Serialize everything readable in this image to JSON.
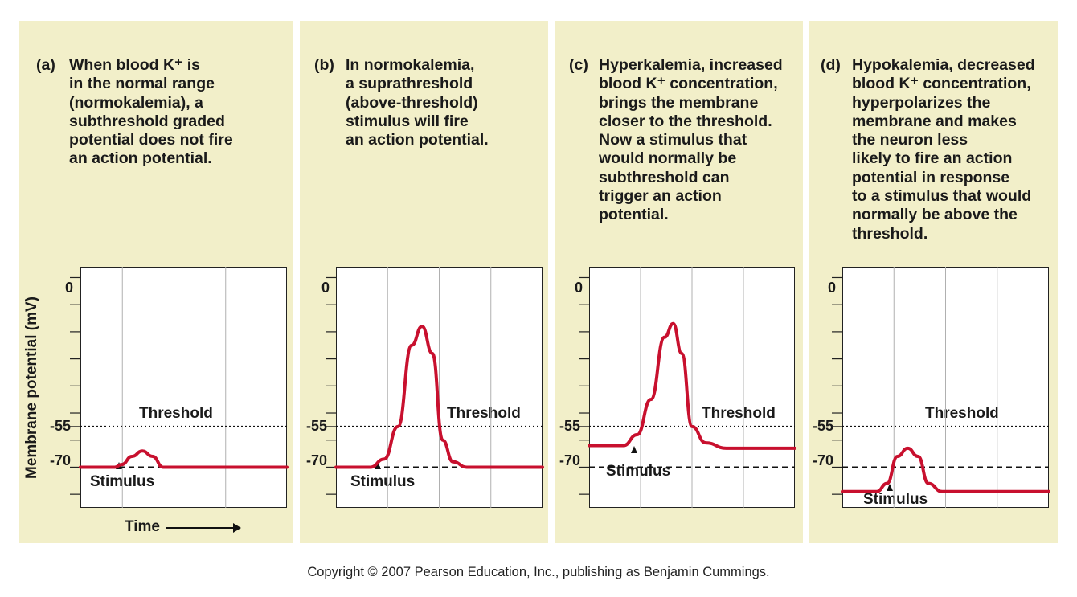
{
  "panels": [
    {
      "label": "(a)",
      "text": "When blood K⁺ is\nin the normal range\n(normokalemia), a\nsubthreshold graded\npotential does not fire\nan action potential.",
      "threshold": "Threshold",
      "stimulus": "Stimulus",
      "ticks": [
        "0",
        "-55",
        "-70"
      ]
    },
    {
      "label": "(b)",
      "text": "In normokalemia,\na suprathreshold\n(above-threshold)\nstimulus will fire\nan action potential.",
      "threshold": "Threshold",
      "stimulus": "Stimulus",
      "ticks": [
        "0",
        "-55",
        "-70"
      ]
    },
    {
      "label": "(c)",
      "text": "Hyperkalemia, increased\nblood K⁺ concentration,\nbrings the membrane\ncloser to the threshold.\nNow a stimulus that\nwould normally be\nsubthreshold can\ntrigger an action\npotential.",
      "threshold": "Threshold",
      "stimulus": "Stimulus",
      "ticks": [
        "0",
        "-55",
        "-70"
      ]
    },
    {
      "label": "(d)",
      "text": "Hypokalemia, decreased\nblood K⁺ concentration,\nhyperpolarizes the\nmembrane and makes\nthe neuron less\nlikely to fire an action\npotential in response\nto a stimulus that would\nnormally be above the\nthreshold.",
      "threshold": "Threshold",
      "stimulus": "Stimulus",
      "ticks": [
        "0",
        "-55",
        "-70"
      ]
    }
  ],
  "ylabel": "Membrane potential (mV)",
  "xlabel": "Time",
  "copyright": "Copyright © 2007 Pearson Education, Inc., publishing as Benjamin Cummings.",
  "colors": {
    "panel_bg": "#f2efc9",
    "trace": "#c8102e",
    "grid": "#b0b0b0"
  },
  "chart_data": [
    {
      "type": "line",
      "title": "(a)",
      "ylabel": "Membrane potential (mV)",
      "xlabel": "Time",
      "ylim": [
        -85,
        4
      ],
      "threshold": -55,
      "resting": -70,
      "x": [
        0,
        1,
        1.2,
        1.5,
        1.8,
        2.1,
        2.4,
        6
      ],
      "y": [
        -70,
        -70,
        -69,
        -66,
        -64,
        -66,
        -70,
        -70
      ]
    },
    {
      "type": "line",
      "title": "(b)",
      "ylabel": "Membrane potential (mV)",
      "xlabel": "Time",
      "ylim": [
        -85,
        4
      ],
      "threshold": -55,
      "resting": -70,
      "x": [
        0,
        1,
        1.4,
        1.8,
        2.2,
        2.5,
        2.8,
        3.1,
        3.4,
        3.8,
        6
      ],
      "y": [
        -70,
        -70,
        -67,
        -55,
        -25,
        -18,
        -28,
        -60,
        -68,
        -70,
        -70
      ]
    },
    {
      "type": "line",
      "title": "(c)",
      "ylabel": "Membrane potential (mV)",
      "xlabel": "Time",
      "ylim": [
        -85,
        4
      ],
      "threshold": -55,
      "resting": -70,
      "x": [
        0,
        1,
        1.4,
        1.8,
        2.2,
        2.45,
        2.7,
        3.0,
        3.4,
        4,
        6
      ],
      "y": [
        -62,
        -62,
        -58,
        -45,
        -22,
        -17,
        -28,
        -55,
        -61,
        -63,
        -63
      ]
    },
    {
      "type": "line",
      "title": "(d)",
      "ylabel": "Membrane potential (mV)",
      "xlabel": "Time",
      "ylim": [
        -85,
        4
      ],
      "threshold": -55,
      "resting": -70,
      "x": [
        0,
        1,
        1.3,
        1.6,
        1.9,
        2.2,
        2.5,
        2.9,
        6
      ],
      "y": [
        -79,
        -79,
        -76,
        -66,
        -63,
        -66,
        -76,
        -79,
        -79
      ]
    }
  ]
}
